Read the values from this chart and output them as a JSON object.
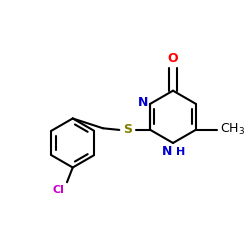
{
  "background_color": "#ffffff",
  "figsize": [
    2.5,
    2.5
  ],
  "dpi": 100,
  "bond_color": "#000000",
  "bond_width": 1.5,
  "colors": {
    "N": "#0000cc",
    "O": "#ff0000",
    "S": "#808000",
    "Cl": "#cc00cc",
    "C": "#000000"
  },
  "font_size": 9,
  "font_size_small": 8
}
